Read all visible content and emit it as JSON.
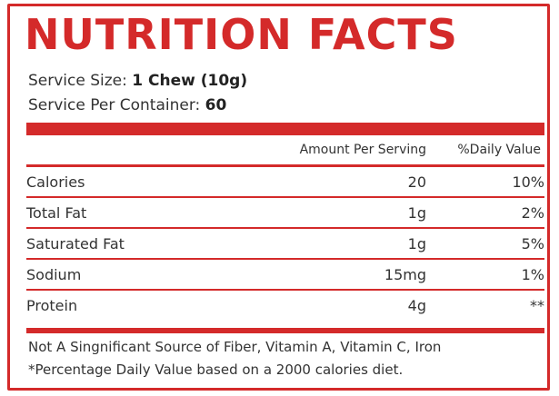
{
  "title": "NUTRITION FACTS",
  "serving": {
    "size_label": "Service Size: ",
    "size_value": "1 Chew (10g)",
    "per_container_label": "Service Per Container: ",
    "per_container_value": "60"
  },
  "table": {
    "headers": {
      "amount": "Amount Per Serving",
      "daily_value": "%Daily Value"
    },
    "rows": [
      {
        "name": "Calories",
        "amount": "20",
        "dv": "10%"
      },
      {
        "name": "Total Fat",
        "amount": "1g",
        "dv": "2%"
      },
      {
        "name": "Saturated Fat",
        "amount": "1g",
        "dv": "5%"
      },
      {
        "name": "Sodium",
        "amount": "15mg",
        "dv": "1%"
      },
      {
        "name": "Protein",
        "amount": "4g",
        "dv": "**"
      }
    ]
  },
  "footnotes": {
    "line1": "Not A Singnificant Source of Fiber, Vitamin A, Vitamin C, Iron",
    "line2": "*Percentage Daily Value based on a 2000 calories diet."
  },
  "colors": {
    "accent": "#d42a2a",
    "text": "#333333",
    "background": "#ffffff"
  }
}
